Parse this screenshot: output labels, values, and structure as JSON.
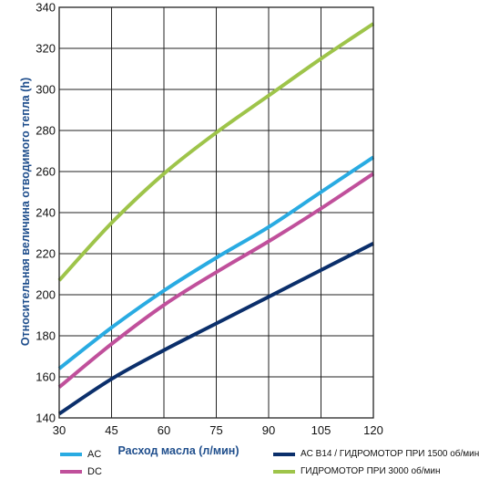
{
  "chart_data": {
    "type": "line",
    "xlabel": "Расход масла (л/мин)",
    "ylabel": "Относительная величина отводимого тепла (h)",
    "xlim": [
      30,
      120
    ],
    "ylim": [
      140,
      340
    ],
    "xticks": [
      30,
      45,
      60,
      75,
      90,
      105,
      120
    ],
    "yticks": [
      140,
      160,
      180,
      200,
      220,
      240,
      260,
      280,
      300,
      320,
      340
    ],
    "grid": true,
    "legend_position": "bottom",
    "series": [
      {
        "name": "AC",
        "color": "#29abe2",
        "points": [
          [
            30,
            164
          ],
          [
            45,
            184
          ],
          [
            60,
            202
          ],
          [
            75,
            218
          ],
          [
            90,
            233
          ],
          [
            105,
            250
          ],
          [
            120,
            267
          ]
        ]
      },
      {
        "name": "DC",
        "color": "#c0509b",
        "points": [
          [
            30,
            155
          ],
          [
            45,
            176
          ],
          [
            60,
            195
          ],
          [
            75,
            211
          ],
          [
            90,
            226
          ],
          [
            105,
            242
          ],
          [
            120,
            259
          ]
        ]
      },
      {
        "name": "AC B14 / ГИДРОМОТОР ПРИ 1500 об/мин",
        "color": "#0b2f6b",
        "points": [
          [
            30,
            142
          ],
          [
            45,
            159
          ],
          [
            60,
            173
          ],
          [
            75,
            186
          ],
          [
            90,
            199
          ],
          [
            105,
            212
          ],
          [
            120,
            225
          ]
        ]
      },
      {
        "name": "ГИДРОМОТОР ПРИ 3000 об/мин",
        "color": "#9ec44a",
        "points": [
          [
            30,
            207
          ],
          [
            45,
            235
          ],
          [
            60,
            259
          ],
          [
            75,
            279
          ],
          [
            90,
            297
          ],
          [
            105,
            315
          ],
          [
            120,
            332
          ]
        ]
      }
    ]
  }
}
